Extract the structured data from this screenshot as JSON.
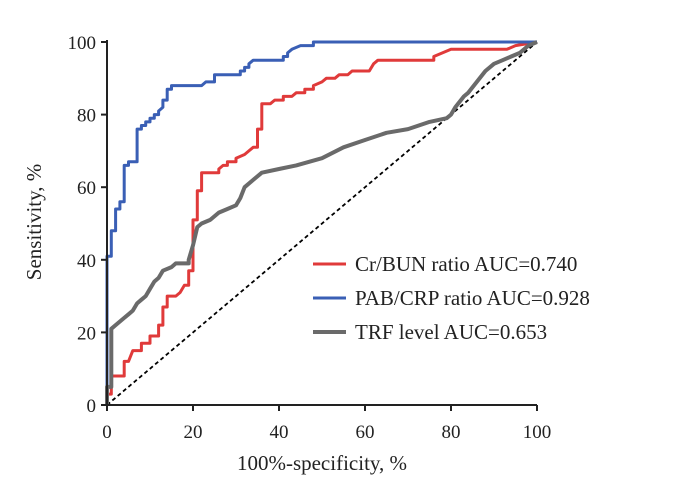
{
  "chart_data": {
    "type": "line",
    "title": "",
    "xlabel": "100%-specificity, %",
    "ylabel": "Sensitivity, %",
    "xlim": [
      0,
      100
    ],
    "ylim": [
      0,
      100
    ],
    "x_ticks": [
      0,
      20,
      40,
      60,
      80,
      100
    ],
    "y_ticks": [
      0,
      20,
      40,
      60,
      80,
      100
    ],
    "legend_position": "lower-right",
    "grid": false,
    "reference_line": {
      "style": "dashed",
      "color": "#000000",
      "points": [
        [
          0,
          0
        ],
        [
          100,
          100
        ]
      ]
    },
    "series": [
      {
        "name": "Cr/BUN ratio AUC=0.740",
        "color": "#e03a3a",
        "points": [
          [
            0,
            0
          ],
          [
            0,
            3
          ],
          [
            1,
            3
          ],
          [
            1,
            8
          ],
          [
            4,
            8
          ],
          [
            4,
            12
          ],
          [
            5,
            12
          ],
          [
            6,
            15
          ],
          [
            8,
            15
          ],
          [
            8,
            17
          ],
          [
            10,
            17
          ],
          [
            10,
            19
          ],
          [
            12,
            19
          ],
          [
            12,
            22
          ],
          [
            13,
            22
          ],
          [
            13,
            27
          ],
          [
            14,
            27
          ],
          [
            14,
            30
          ],
          [
            16,
            30
          ],
          [
            17,
            31
          ],
          [
            18,
            33
          ],
          [
            19,
            33
          ],
          [
            19,
            37
          ],
          [
            20,
            37
          ],
          [
            20,
            51
          ],
          [
            21,
            51
          ],
          [
            21,
            59
          ],
          [
            22,
            59
          ],
          [
            22,
            64
          ],
          [
            26,
            64
          ],
          [
            26,
            65
          ],
          [
            27,
            66
          ],
          [
            28,
            66
          ],
          [
            28,
            67
          ],
          [
            30,
            67
          ],
          [
            30,
            68
          ],
          [
            32,
            69
          ],
          [
            33,
            70
          ],
          [
            34,
            71
          ],
          [
            35,
            71
          ],
          [
            35,
            76
          ],
          [
            36,
            76
          ],
          [
            36,
            83
          ],
          [
            38,
            83
          ],
          [
            39,
            84
          ],
          [
            41,
            84
          ],
          [
            41,
            85
          ],
          [
            43,
            85
          ],
          [
            44,
            86
          ],
          [
            46,
            86
          ],
          [
            46,
            87
          ],
          [
            48,
            87
          ],
          [
            48,
            88
          ],
          [
            50,
            89
          ],
          [
            51,
            90
          ],
          [
            53,
            90
          ],
          [
            54,
            91
          ],
          [
            56,
            91
          ],
          [
            57,
            92
          ],
          [
            61,
            92
          ],
          [
            62,
            94
          ],
          [
            63,
            95
          ],
          [
            66,
            95
          ],
          [
            76,
            95
          ],
          [
            76,
            96
          ],
          [
            78,
            97
          ],
          [
            80,
            98
          ],
          [
            93,
            98
          ],
          [
            95,
            99
          ],
          [
            100,
            100
          ]
        ]
      },
      {
        "name": "PAB/CRP ratio AUC=0.928",
        "color": "#3a5fb5",
        "points": [
          [
            0,
            0
          ],
          [
            0,
            41
          ],
          [
            1,
            41
          ],
          [
            1,
            48
          ],
          [
            2,
            48
          ],
          [
            2,
            54
          ],
          [
            3,
            54
          ],
          [
            3,
            56
          ],
          [
            4,
            56
          ],
          [
            4,
            66
          ],
          [
            5,
            66
          ],
          [
            5,
            67
          ],
          [
            7,
            67
          ],
          [
            7,
            76
          ],
          [
            8,
            76
          ],
          [
            8,
            77
          ],
          [
            9,
            77
          ],
          [
            9,
            78
          ],
          [
            10,
            78
          ],
          [
            10,
            79
          ],
          [
            11,
            79
          ],
          [
            11,
            80
          ],
          [
            12,
            80
          ],
          [
            12,
            81
          ],
          [
            13,
            82
          ],
          [
            13,
            84
          ],
          [
            14,
            84
          ],
          [
            14,
            87
          ],
          [
            15,
            87
          ],
          [
            15,
            88
          ],
          [
            22,
            88
          ],
          [
            23,
            89
          ],
          [
            25,
            89
          ],
          [
            25,
            90
          ],
          [
            25,
            91
          ],
          [
            31,
            91
          ],
          [
            31,
            92
          ],
          [
            32,
            92
          ],
          [
            32,
            93
          ],
          [
            33,
            93
          ],
          [
            33,
            94
          ],
          [
            34,
            95
          ],
          [
            41,
            95
          ],
          [
            41,
            96
          ],
          [
            42,
            96
          ],
          [
            42,
            97
          ],
          [
            43,
            98
          ],
          [
            45,
            99
          ],
          [
            48,
            99
          ],
          [
            48,
            100
          ],
          [
            100,
            100
          ]
        ]
      },
      {
        "name": "TRF level AUC=0.653",
        "color": "#6a6a6a",
        "points": [
          [
            0,
            0
          ],
          [
            0,
            5
          ],
          [
            1,
            5
          ],
          [
            1,
            21
          ],
          [
            2,
            22
          ],
          [
            4,
            24
          ],
          [
            5,
            25
          ],
          [
            6,
            26
          ],
          [
            7,
            28
          ],
          [
            8,
            29
          ],
          [
            9,
            30
          ],
          [
            10,
            32
          ],
          [
            11,
            34
          ],
          [
            12,
            35
          ],
          [
            13,
            37
          ],
          [
            15,
            38
          ],
          [
            16,
            39
          ],
          [
            19,
            39
          ],
          [
            19,
            40
          ],
          [
            20,
            44
          ],
          [
            21,
            49
          ],
          [
            22,
            50
          ],
          [
            24,
            51
          ],
          [
            26,
            53
          ],
          [
            28,
            54
          ],
          [
            30,
            55
          ],
          [
            31,
            57
          ],
          [
            32,
            60
          ],
          [
            34,
            62
          ],
          [
            36,
            64
          ],
          [
            40,
            65
          ],
          [
            44,
            66
          ],
          [
            50,
            68
          ],
          [
            55,
            71
          ],
          [
            60,
            73
          ],
          [
            65,
            75
          ],
          [
            70,
            76
          ],
          [
            75,
            78
          ],
          [
            79,
            79
          ],
          [
            80,
            80
          ],
          [
            81,
            82
          ],
          [
            83,
            85
          ],
          [
            84,
            86
          ],
          [
            86,
            89
          ],
          [
            88,
            92
          ],
          [
            90,
            94
          ],
          [
            92,
            95
          ],
          [
            94,
            96
          ],
          [
            96,
            97
          ],
          [
            98,
            99
          ],
          [
            100,
            100
          ]
        ]
      }
    ]
  }
}
